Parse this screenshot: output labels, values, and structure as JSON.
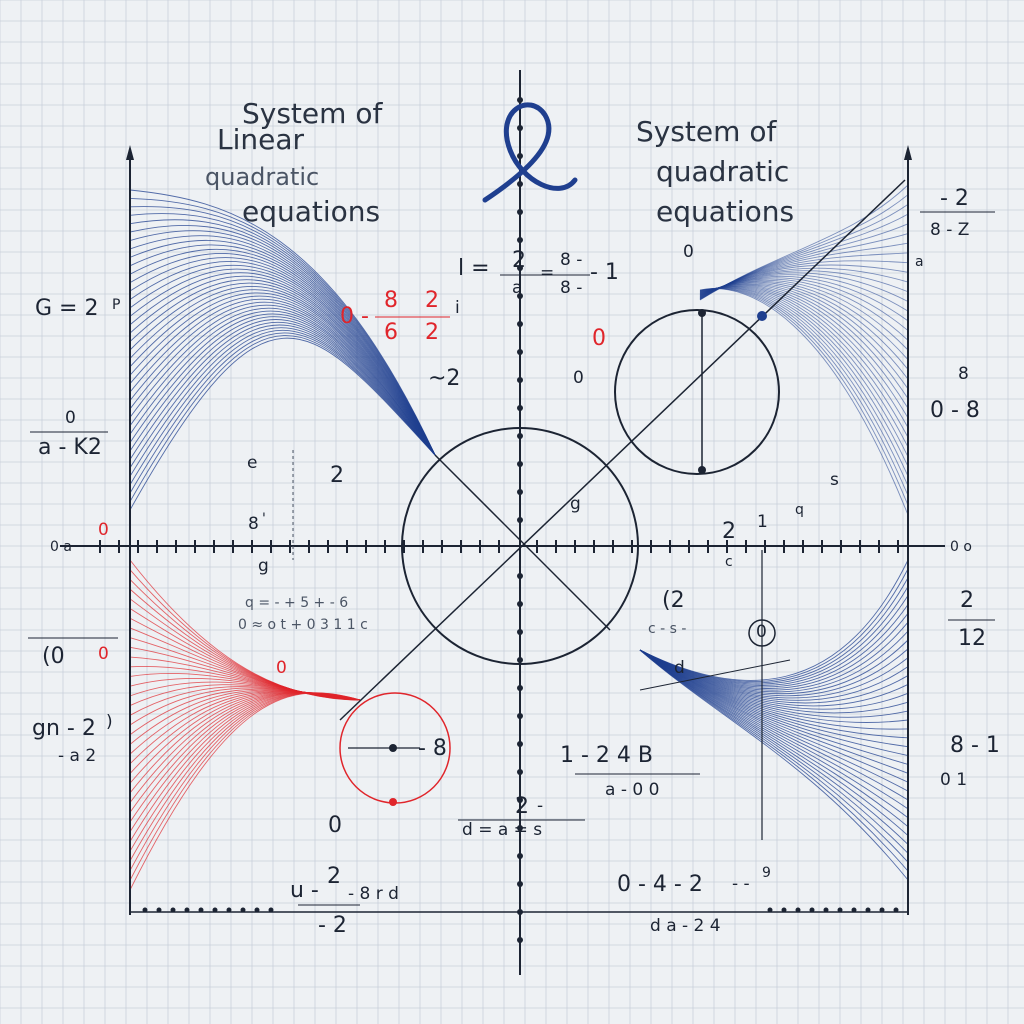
{
  "left_title": {
    "line1": "System of",
    "line2": "Linear",
    "line3": "quadratic",
    "line4": "equations"
  },
  "right_title": {
    "line1": "System of",
    "line2": "quadratic",
    "line3": "equations"
  },
  "colors": {
    "background": "#eef1f4",
    "grid": "#c9d0da",
    "ink": "#1c2433",
    "blue_curves": "#1f3f8f",
    "red_curves": "#e0252b"
  },
  "top_symbol": "ϱ",
  "annotations": {
    "left_eq_top": "G = 2",
    "left_eq_top_sup": "P",
    "left_frac_num": "0",
    "left_frac_den": "a - K2",
    "left_red_0": "0",
    "left_paren_0": "(0",
    "left_paren_red": "0",
    "left_bottom_eq": "gn - 2",
    "left_bottom_eq2": "- a 2",
    "left_bottom_sup": ")",
    "upper_red_eq_left": "0 -",
    "upper_red_frac_num": "8",
    "upper_red_frac_den": "6",
    "upper_red_frac2_num": "2",
    "upper_red_frac2_den": "2",
    "upper_red_paren": "i",
    "tilde_2": "~2",
    "left_mid_2": "2",
    "left_mid_8": "8",
    "left_mid_8sup": "'",
    "left_mid_g": "g",
    "left_mid_e": "e",
    "left_eq_red_top": "q = - + 5 + - 6",
    "left_eq_red_bot": "0 ≈ o t + 0 3 1 1 c",
    "red_small_0": "0",
    "small_circle_label": "- 8",
    "bottom_0": "0",
    "bottom_left_frac_a": "u -",
    "bottom_left_frac_num": "2",
    "bottom_left_frac_tail": "- 8 r d",
    "bottom_left_den": "- 2",
    "top_center_eq_left": "l =",
    "top_center_frac_num": "2",
    "top_center_frac_den": "a",
    "top_center_eq_mid": "=",
    "top_center_frac2_num": "8 -",
    "top_center_frac2_den": "8 -",
    "top_center_tail": "- 1",
    "mid_bottom_eq_num": "1 - 2 4  B",
    "mid_bottom_eq_den": "a - 0  0",
    "center_bottom_frac_num": "2",
    "center_bottom_frac_num2": "-",
    "center_bottom_frac_den": "d = a = s",
    "right_top_0": "0",
    "right_red_0": "0",
    "right_small_0": "0",
    "right_eq_top_num": "- 2",
    "right_eq_top_den": "8 - Z",
    "right_frac_a": "a",
    "right_mid_label": "0 - 8",
    "right_mid_sup": "8",
    "right_small_s": "s",
    "right_small_q": "q",
    "right_2": "2",
    "right_1": "1",
    "right_c": "c",
    "right_g": "g",
    "right_paren_0": "(2",
    "right_paren_sm": "c - s -",
    "right_circle_label": "0",
    "right_d": "d",
    "right_side_frac_num": "2",
    "right_side_frac_den": "12",
    "right_bottom_a": "8 - 1",
    "right_bottom_b": "0 1",
    "right_bottom_eq": "0 - 4 - 2",
    "right_bottom_eq_tail": "- -",
    "right_bottom_den": "d a - 2 4",
    "right_dot_label": "9",
    "axis_left_end": "0 a",
    "axis_right_end": "0 o"
  }
}
